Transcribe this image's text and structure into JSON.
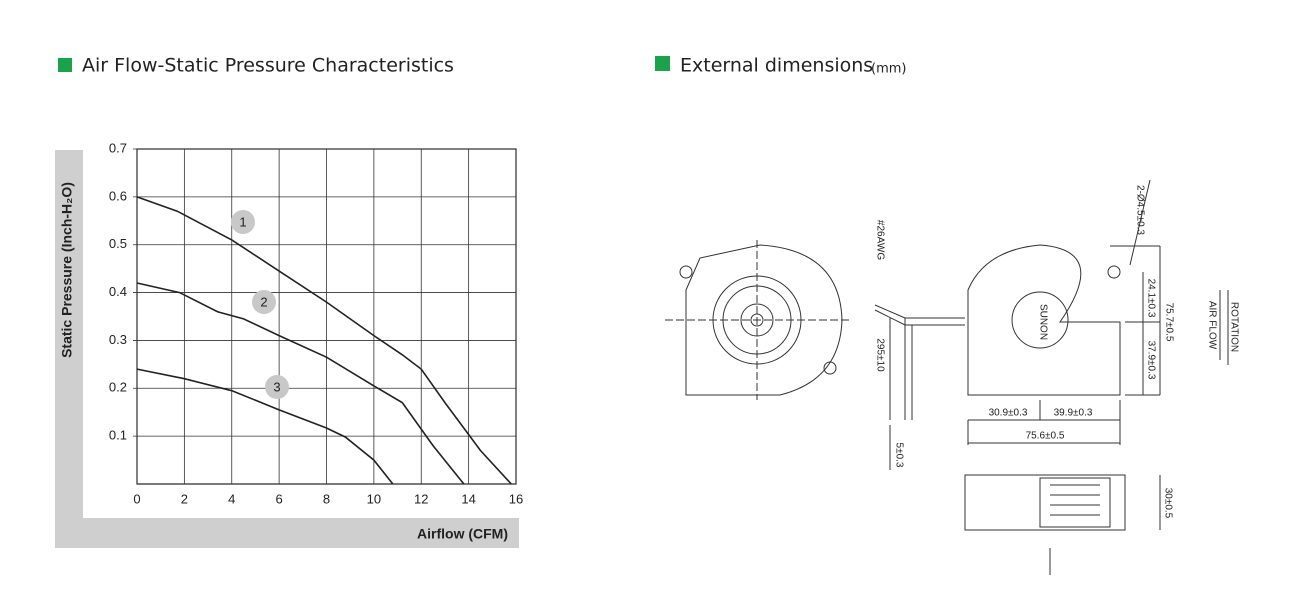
{
  "chart_data": {
    "type": "line",
    "title": "Air Flow-Static Pressure Characteristics",
    "x_label": "Airflow (CFM)",
    "y_label": "Static Pressure (Inch-H₂O)",
    "xlim": [
      0,
      16
    ],
    "xticks": [
      0,
      2,
      4,
      6,
      8,
      10,
      12,
      14,
      16
    ],
    "ylim": [
      0,
      0.7
    ],
    "yticks": [
      0.1,
      0.2,
      0.3,
      0.4,
      0.5,
      0.6,
      0.7
    ],
    "grid": true,
    "series": [
      {
        "name": "1",
        "color": "#222222",
        "x": [
          0,
          1.7,
          4,
          6,
          8,
          10,
          11.2,
          12,
          13,
          14.5,
          15.8
        ],
        "values": [
          0.6,
          0.57,
          0.51,
          0.445,
          0.38,
          0.31,
          0.27,
          0.24,
          0.17,
          0.07,
          0
        ]
      },
      {
        "name": "2",
        "color": "#222222",
        "x": [
          0,
          1.8,
          3.4,
          4.5,
          6,
          8,
          10,
          11.2,
          12.5,
          13.8
        ],
        "values": [
          0.42,
          0.4,
          0.36,
          0.345,
          0.31,
          0.265,
          0.205,
          0.17,
          0.08,
          0
        ]
      },
      {
        "name": "3",
        "color": "#222222",
        "x": [
          0,
          2,
          4,
          6,
          8,
          8.8,
          10,
          10.8
        ],
        "values": [
          0.24,
          0.22,
          0.195,
          0.155,
          0.117,
          0.098,
          0.05,
          0
        ]
      }
    ]
  },
  "dimensions": {
    "title": "External dimensions",
    "unit": "(mm)",
    "labels": {
      "hole": "2-Ø4.5±0.3",
      "wire": "#26AWG",
      "lead": "295±10",
      "strip": "5±0.3",
      "h1": "24.1±0.3",
      "h2": "37.9±0.3",
      "height": "75.7±0.5",
      "w1": "30.9±0.3",
      "w2": "39.9±0.3",
      "width": "75.6±0.5",
      "depth": "30±0.5",
      "rotation": "ROTATION",
      "airflow": "AIR FLOW",
      "brand": "SUNON"
    }
  }
}
